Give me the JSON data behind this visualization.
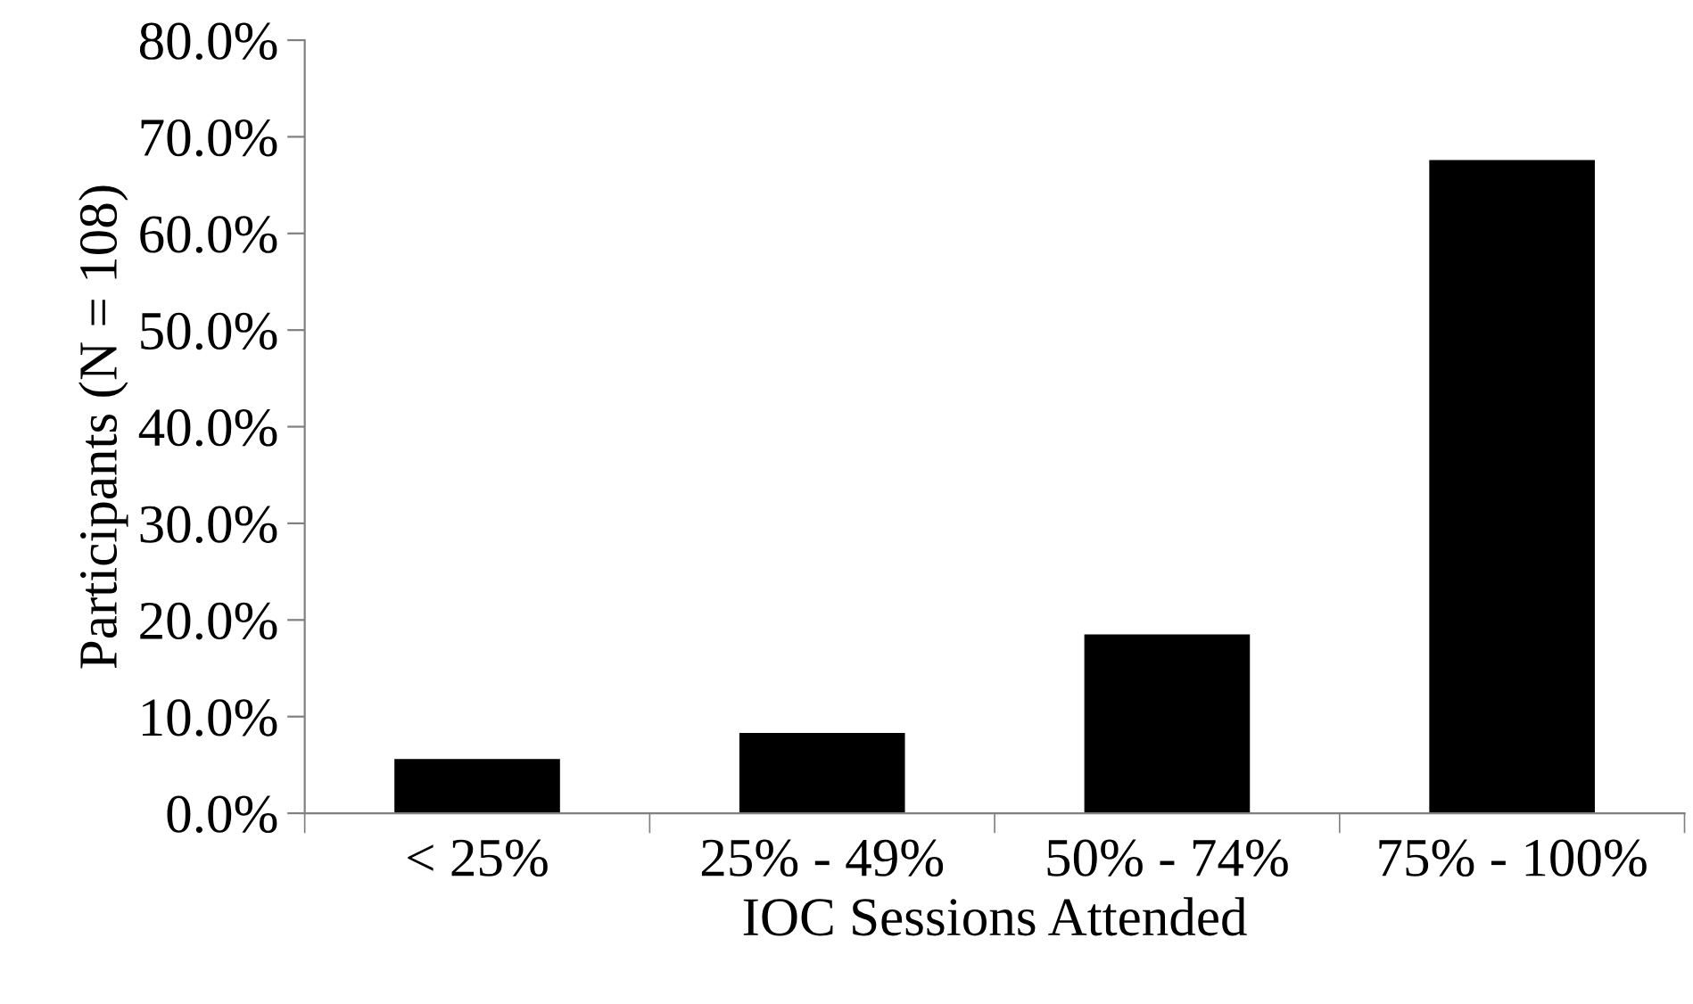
{
  "chart_data": {
    "type": "bar",
    "xlabel": "IOC Sessions Attended",
    "ylabel": "Participants (N = 108)",
    "categories": [
      "< 25%",
      "25% - 49%",
      "50% - 74%",
      "75% - 100%"
    ],
    "values": [
      5.6,
      8.3,
      18.5,
      67.6
    ],
    "color": "#000000",
    "ylim": [
      0,
      80
    ],
    "yticks": [
      {
        "value": 0,
        "label": "0.0%"
      },
      {
        "value": 10,
        "label": "10.0%"
      },
      {
        "value": 20,
        "label": "20.0%"
      },
      {
        "value": 30,
        "label": "30.0%"
      },
      {
        "value": 40,
        "label": "40.0%"
      },
      {
        "value": 50,
        "label": "50.0%"
      },
      {
        "value": 60,
        "label": "60.0%"
      },
      {
        "value": 70,
        "label": "70.0%"
      },
      {
        "value": 80,
        "label": "80.0%"
      }
    ],
    "grid": false,
    "legend": false
  }
}
